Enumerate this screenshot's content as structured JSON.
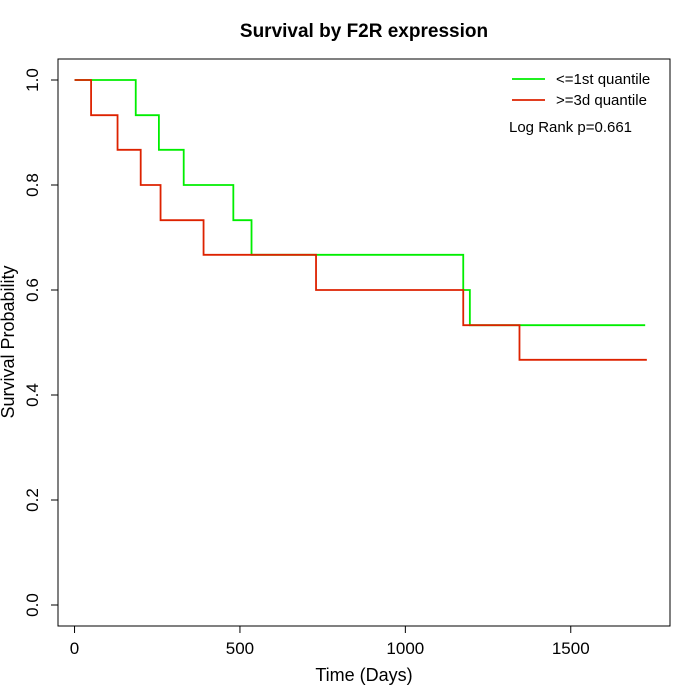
{
  "chart_data": {
    "type": "line",
    "title": "Survival by F2R expression",
    "xlabel": "Time (Days)",
    "ylabel": "Survival Probability",
    "xlim": [
      -50,
      1800
    ],
    "ylim": [
      -0.04,
      1.04
    ],
    "x_ticks": [
      0,
      500,
      1000,
      1500
    ],
    "y_ticks": [
      0.0,
      0.2,
      0.4,
      0.6,
      0.8,
      1.0
    ],
    "x_tick_labels": [
      "0",
      "500",
      "1000",
      "1500"
    ],
    "y_tick_labels": [
      "0.0",
      "0.2",
      "0.4",
      "0.6",
      "0.8",
      "1.0"
    ],
    "grid": false,
    "legend_position": "top-right",
    "annotation": "Log Rank p=0.661",
    "series": [
      {
        "name": "<=1st quantile",
        "color": "#00ee00",
        "step": "post",
        "x": [
          0,
          185,
          255,
          330,
          480,
          535,
          1175,
          1195,
          1725
        ],
        "y": [
          1.0,
          0.933,
          0.867,
          0.8,
          0.733,
          0.667,
          0.6,
          0.533,
          0.533
        ]
      },
      {
        "name": ">=3d quantile",
        "color": "#dd2200",
        "step": "post",
        "x": [
          0,
          50,
          130,
          200,
          260,
          390,
          730,
          1175,
          1345,
          1730
        ],
        "y": [
          1.0,
          0.933,
          0.867,
          0.8,
          0.733,
          0.667,
          0.6,
          0.533,
          0.467,
          0.467
        ]
      }
    ]
  }
}
